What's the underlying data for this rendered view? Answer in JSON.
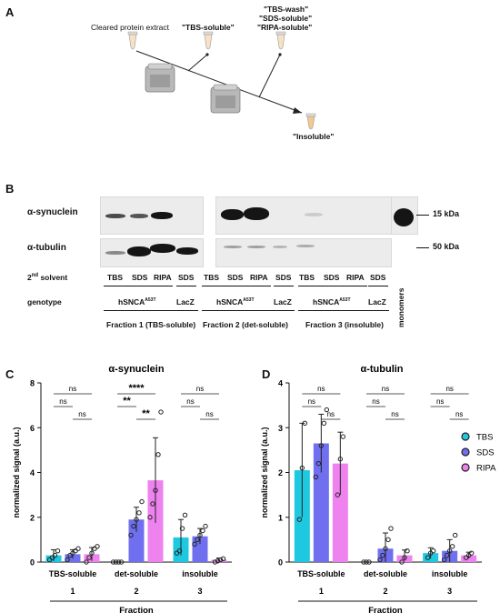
{
  "panelA": {
    "letter": "A",
    "start_label": "Cleared protein extract",
    "tbs_label": "\"TBS-soluble\"",
    "wash_labels": [
      "\"TBS-wash\"",
      "\"SDS-soluble\"",
      "\"RIPA-soluble\""
    ],
    "insoluble_label": "\"Insoluble\""
  },
  "panelB": {
    "letter": "B",
    "row1_label": "α-synuclein",
    "row2_label": "α-tubulin",
    "kda1": "15 kDa",
    "kda2": "50 kDa",
    "solvent_label": "2nd solvent",
    "genotype_label": "genotype",
    "monomers_label": "monomers",
    "fractions": [
      {
        "solvents": [
          "TBS",
          "SDS",
          "RIPA",
          "SDS"
        ],
        "genotype": "hSNCAA53T",
        "control": "LacZ",
        "fraction_label": "Fraction 1 (TBS-soluble)"
      },
      {
        "solvents": [
          "TBS",
          "SDS",
          "RIPA",
          "SDS"
        ],
        "genotype": "hSNCAA53T",
        "control": "LacZ",
        "fraction_label": "Fraction 2 (det-soluble)"
      },
      {
        "solvents": [
          "TBS",
          "SDS",
          "RIPA",
          "SDS"
        ],
        "genotype": "hSNCAA53T",
        "control": "LacZ",
        "fraction_label": "Fraction 3 (insoluble)"
      }
    ]
  },
  "legend": {
    "entries": [
      {
        "name": "TBS",
        "color": "#1ec8e0"
      },
      {
        "name": "SDS",
        "color": "#6f6ff0"
      },
      {
        "name": "RIPA",
        "color": "#ee82ee"
      }
    ]
  },
  "chart_data": [
    {
      "panel": "C",
      "type": "bar",
      "title": "α-synuclein",
      "ylabel": "normalized signal (a.u.)",
      "xlabel": "Fraction",
      "ylim": [
        0,
        8
      ],
      "yticks": [
        0,
        2,
        4,
        6,
        8
      ],
      "categories": [
        "TBS-soluble",
        "det-soluble",
        "insoluble"
      ],
      "category_numbers": [
        "1",
        "2",
        "3"
      ],
      "series": [
        {
          "name": "TBS",
          "values": [
            0.3,
            0.0,
            1.1
          ],
          "errors": [
            0.25,
            0.0,
            0.8
          ],
          "points": [
            [
              0.1,
              0.2,
              0.3,
              0.5
            ],
            [
              0.0,
              0.0,
              0.0,
              0.0
            ],
            [
              0.4,
              0.5,
              1.5,
              2.1
            ]
          ]
        },
        {
          "name": "SDS",
          "values": [
            0.35,
            1.9,
            1.15
          ],
          "errors": [
            0.2,
            0.55,
            0.35
          ],
          "points": [
            [
              0.1,
              0.3,
              0.4,
              0.5,
              0.6
            ],
            [
              1.2,
              1.6,
              1.9,
              2.2,
              2.7
            ],
            [
              0.8,
              1.0,
              1.2,
              1.4,
              1.6
            ]
          ]
        },
        {
          "name": "RIPA",
          "values": [
            0.35,
            3.65,
            0.1
          ],
          "errors": [
            0.3,
            1.9,
            0.08
          ],
          "points": [
            [
              0.0,
              0.2,
              0.4,
              0.6,
              0.7
            ],
            [
              2.0,
              2.6,
              3.2,
              4.8,
              6.7
            ],
            [
              0.0,
              0.05,
              0.1,
              0.15
            ]
          ]
        }
      ],
      "significance": [
        [
          {
            "pair": [
              0,
              1
            ],
            "label": "ns",
            "level": 1
          },
          {
            "pair": [
              1,
              2
            ],
            "label": "ns",
            "level": 0
          },
          {
            "pair": [
              0,
              2
            ],
            "label": "ns",
            "level": 2
          }
        ],
        [
          {
            "pair": [
              0,
              1
            ],
            "label": "**",
            "level": 1
          },
          {
            "pair": [
              1,
              2
            ],
            "label": "**",
            "level": 0
          },
          {
            "pair": [
              0,
              2
            ],
            "label": "****",
            "level": 2
          }
        ],
        [
          {
            "pair": [
              0,
              1
            ],
            "label": "ns",
            "level": 1
          },
          {
            "pair": [
              1,
              2
            ],
            "label": "ns",
            "level": 0
          },
          {
            "pair": [
              0,
              2
            ],
            "label": "ns",
            "level": 2
          }
        ]
      ]
    },
    {
      "panel": "D",
      "type": "bar",
      "title": "α-tubulin",
      "ylabel": "normalized signal (a.u.)",
      "xlabel": "Fraction",
      "ylim": [
        0,
        4
      ],
      "yticks": [
        0,
        1,
        2,
        3,
        4
      ],
      "categories": [
        "TBS-soluble",
        "det-soluble",
        "insoluble"
      ],
      "category_numbers": [
        "1",
        "2",
        "3"
      ],
      "series": [
        {
          "name": "TBS",
          "values": [
            2.05,
            0.0,
            0.2
          ],
          "errors": [
            1.05,
            0.0,
            0.12
          ],
          "points": [
            [
              0.95,
              2.1,
              3.1
            ],
            [
              0.0,
              0.0,
              0.0
            ],
            [
              0.1,
              0.2,
              0.25
            ]
          ]
        },
        {
          "name": "SDS",
          "values": [
            2.65,
            0.3,
            0.25
          ],
          "errors": [
            0.65,
            0.35,
            0.25
          ],
          "points": [
            [
              1.9,
              2.2,
              2.6,
              3.1,
              3.4
            ],
            [
              0.05,
              0.15,
              0.3,
              0.5,
              0.75
            ],
            [
              0.05,
              0.15,
              0.25,
              0.35,
              0.6
            ]
          ]
        },
        {
          "name": "RIPA",
          "values": [
            2.2,
            0.15,
            0.15
          ],
          "errors": [
            0.7,
            0.12,
            0.07
          ],
          "points": [
            [
              1.5,
              2.3,
              2.8
            ],
            [
              0.0,
              0.1,
              0.25
            ],
            [
              0.1,
              0.15,
              0.2
            ]
          ]
        }
      ],
      "significance": [
        [
          {
            "pair": [
              0,
              1
            ],
            "label": "ns",
            "level": 1
          },
          {
            "pair": [
              1,
              2
            ],
            "label": "ns",
            "level": 0
          },
          {
            "pair": [
              0,
              2
            ],
            "label": "ns",
            "level": 2
          }
        ],
        [
          {
            "pair": [
              0,
              1
            ],
            "label": "ns",
            "level": 1
          },
          {
            "pair": [
              1,
              2
            ],
            "label": "ns",
            "level": 0
          },
          {
            "pair": [
              0,
              2
            ],
            "label": "ns",
            "level": 2
          }
        ],
        [
          {
            "pair": [
              0,
              1
            ],
            "label": "ns",
            "level": 1
          },
          {
            "pair": [
              1,
              2
            ],
            "label": "ns",
            "level": 0
          },
          {
            "pair": [
              0,
              2
            ],
            "label": "ns",
            "level": 2
          }
        ]
      ]
    }
  ]
}
